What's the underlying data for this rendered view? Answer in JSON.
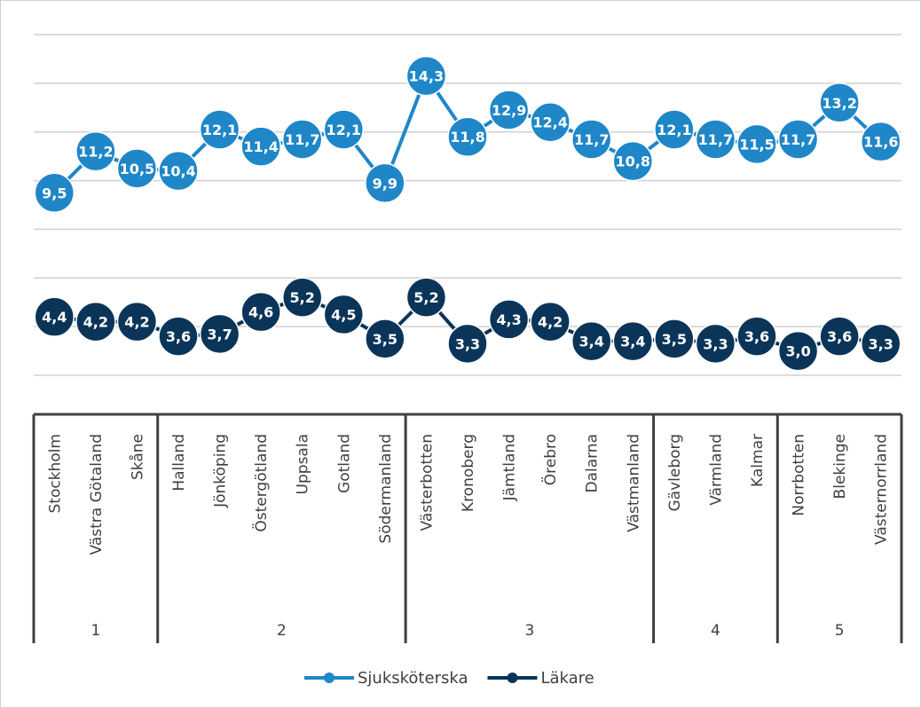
{
  "chart_data": {
    "type": "line",
    "categories": [
      "Stockholm",
      "Västra Götaland",
      "Skåne",
      "Halland",
      "Jönköping",
      "Östergötland",
      "Uppsala",
      "Gotland",
      "Södermanland",
      "Västerbotten",
      "Kronoberg",
      "Jämtland",
      "Örebro",
      "Dalarna",
      "Västmanland",
      "Gävleborg",
      "Värmland",
      "Kalmar",
      "Norrbotten",
      "Blekinge",
      "Västernorrland"
    ],
    "groups": [
      {
        "label": "1",
        "count": 3
      },
      {
        "label": "2",
        "count": 6
      },
      {
        "label": "3",
        "count": 6
      },
      {
        "label": "4",
        "count": 3
      },
      {
        "label": "5",
        "count": 3
      }
    ],
    "series": [
      {
        "name": "Sjuksköterska",
        "color": "#1f86c8",
        "values": [
          9.5,
          11.2,
          10.5,
          10.4,
          12.1,
          11.4,
          11.7,
          12.1,
          9.9,
          14.3,
          11.8,
          12.9,
          12.4,
          11.7,
          10.8,
          12.1,
          11.7,
          11.5,
          11.7,
          13.2,
          11.6
        ],
        "labels": [
          "9,5",
          "11,2",
          "10,5",
          "10,4",
          "12,1",
          "11,4",
          "11,7",
          "12,1",
          "9,9",
          "14,3",
          "11,8",
          "12,9",
          "12,4",
          "11,7",
          "10,8",
          "12,1",
          "11,7",
          "11,5",
          "11,7",
          "13,2",
          "11,6"
        ]
      },
      {
        "name": "Läkare",
        "color": "#0b3558",
        "values": [
          4.4,
          4.2,
          4.2,
          3.6,
          3.7,
          4.6,
          5.2,
          4.5,
          3.5,
          5.2,
          3.3,
          4.3,
          4.2,
          3.4,
          3.4,
          3.5,
          3.3,
          3.6,
          3.0,
          3.6,
          3.3
        ],
        "labels": [
          "4,4",
          "4,2",
          "4,2",
          "3,6",
          "3,7",
          "4,6",
          "5,2",
          "4,5",
          "3,5",
          "5,2",
          "3,3",
          "4,3",
          "4,2",
          "3,4",
          "3,4",
          "3,5",
          "3,3",
          "3,6",
          "3,0",
          "3,6",
          "3,3"
        ]
      }
    ],
    "ylim": [
      2,
      16
    ],
    "grid": true,
    "legend": "bottom",
    "title": "",
    "xlabel": "",
    "ylabel": ""
  }
}
